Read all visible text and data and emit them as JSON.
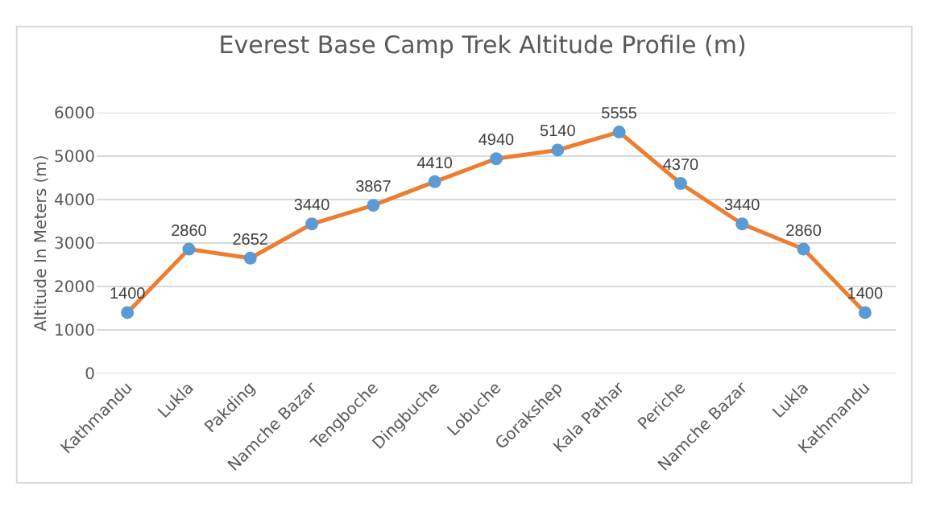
{
  "chart_data": {
    "type": "line",
    "title": "Everest Base Camp Trek Altitude Profile (m)",
    "ylabel": "Altitude In Meters (m)",
    "categories": [
      "Kathmandu",
      "Lukla",
      "Pakding",
      "Namche Bazar",
      "Tengboche",
      "Dingbuche",
      "Lobuche",
      "Gorakshep",
      "Kala Pathar",
      "Periche",
      "Namche Bazar",
      "Lukla",
      "Kathmandu"
    ],
    "series": [
      {
        "color": "#ed7d31",
        "values": [
          1400,
          2860,
          2652,
          3440,
          3867,
          4410,
          4940,
          5140,
          5555,
          4370,
          3440,
          2860,
          1400
        ]
      }
    ],
    "ylim": [
      0,
      6000
    ],
    "yticks": [
      0,
      1000,
      2000,
      3000,
      4000,
      5000,
      6000
    ],
    "grid": "y",
    "marker": "circle",
    "line_style": "solid",
    "data_labels": true
  }
}
